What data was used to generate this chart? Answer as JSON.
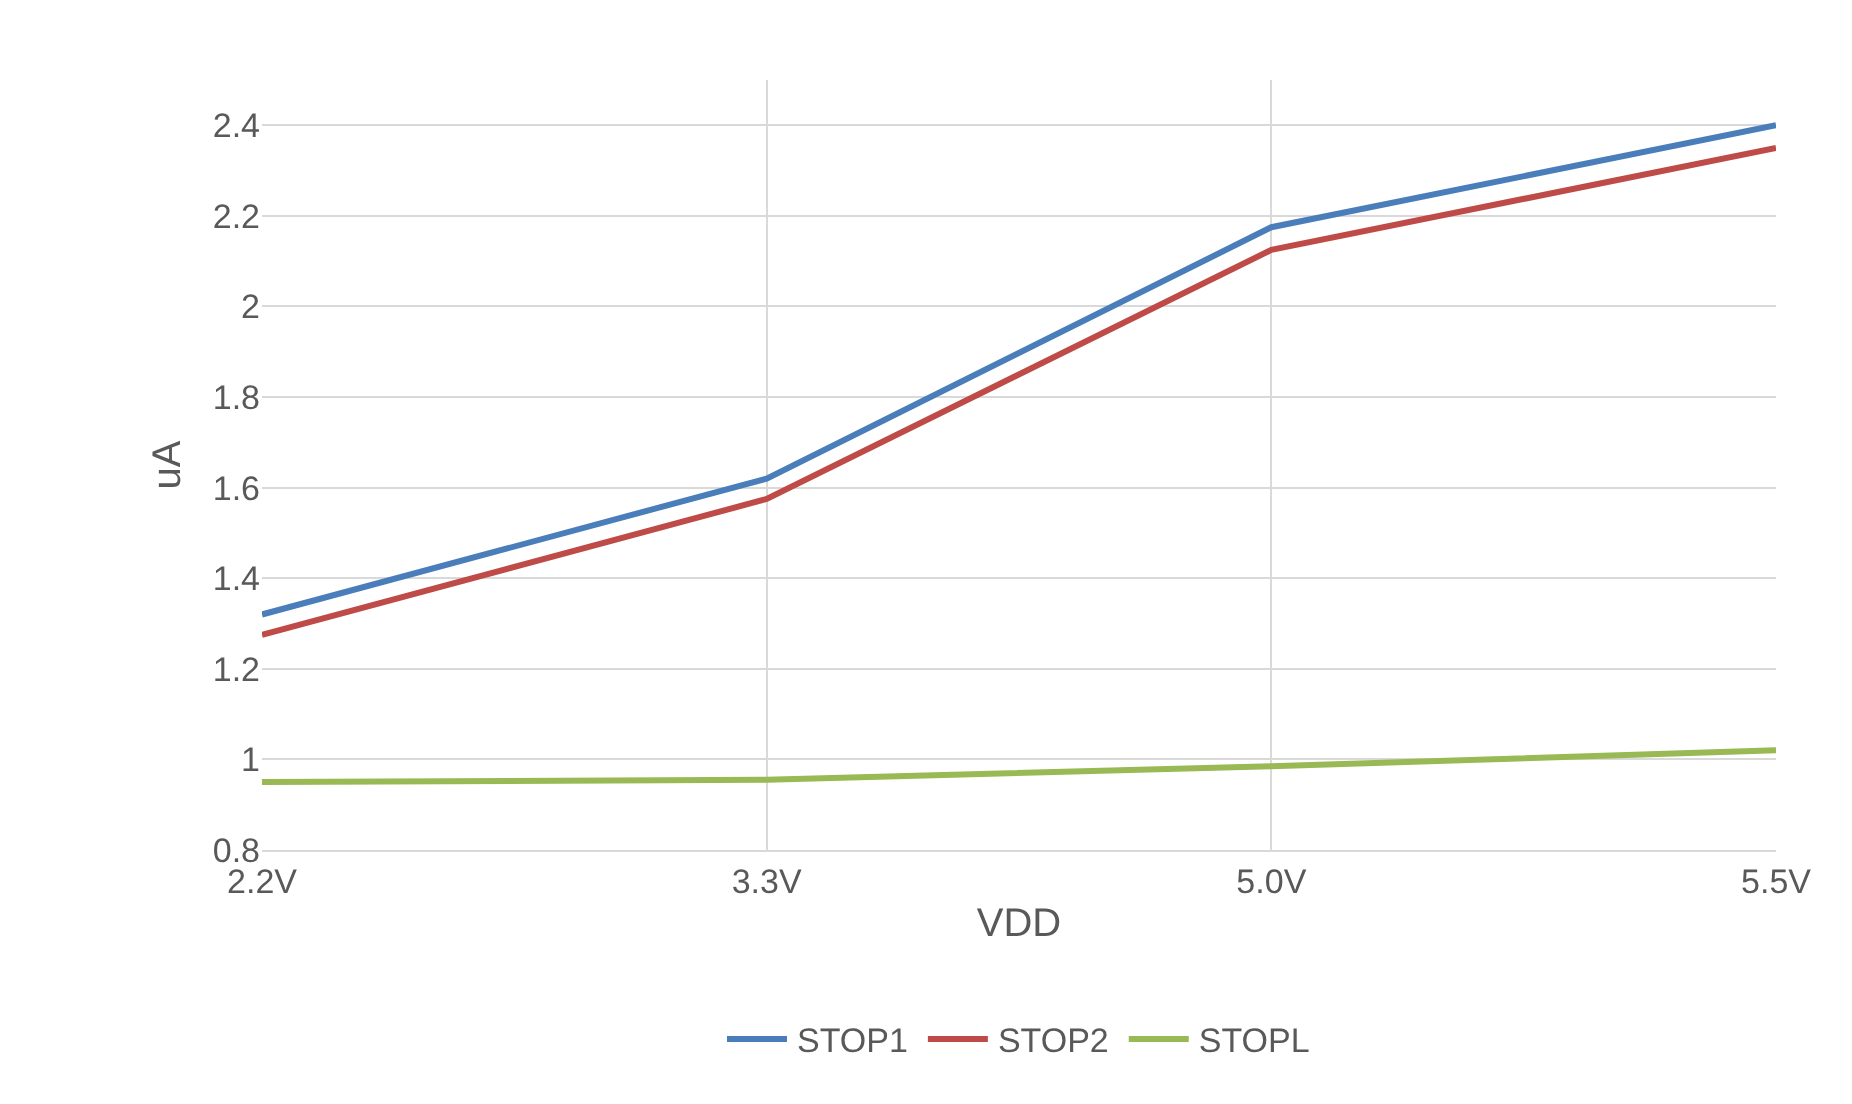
{
  "chart_data": {
    "type": "line",
    "xlabel": "VDD",
    "ylabel": "uA",
    "categories": [
      "2.2V",
      "3.3V",
      "5.0V",
      "5.5V"
    ],
    "series": [
      {
        "name": "STOP1",
        "color": "#4a7ebb",
        "values": [
          1.32,
          1.62,
          2.175,
          2.4
        ]
      },
      {
        "name": "STOP2",
        "color": "#be4b48",
        "values": [
          1.275,
          1.575,
          2.125,
          2.35
        ]
      },
      {
        "name": "STOPL",
        "color": "#98b954",
        "values": [
          0.95,
          0.955,
          0.985,
          1.02
        ]
      }
    ],
    "ylim": [
      0.8,
      2.5
    ],
    "yticks": [
      0.8,
      1,
      1.2,
      1.4,
      1.6,
      1.8,
      2,
      2.2,
      2.4
    ],
    "grid": true,
    "legend": "bottom",
    "marker": "none",
    "line_style": "solid"
  }
}
